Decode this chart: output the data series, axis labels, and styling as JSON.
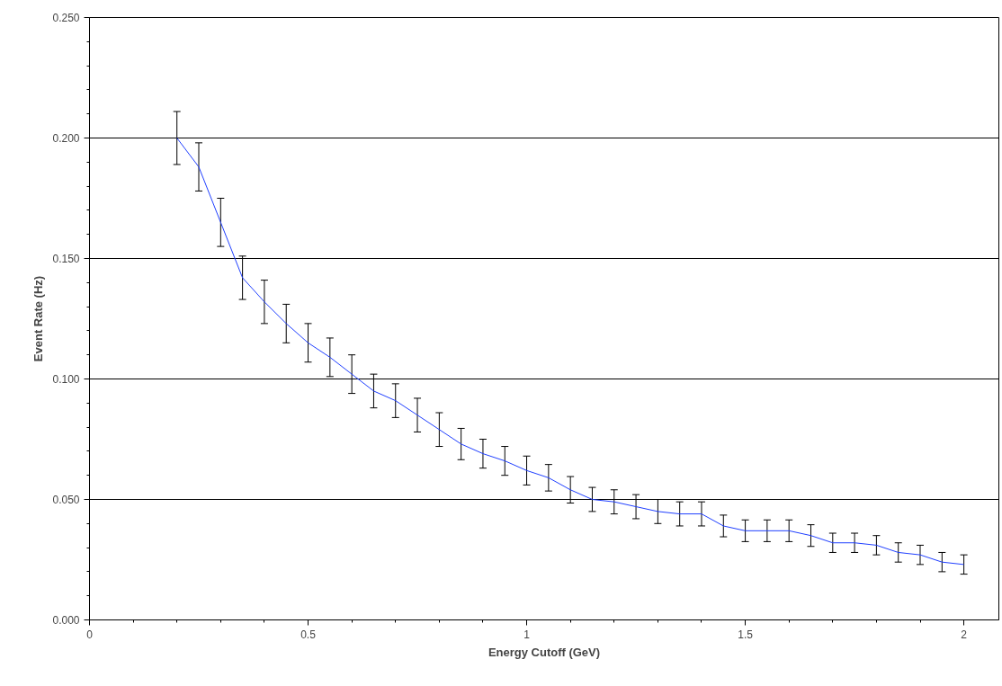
{
  "chart_data": {
    "type": "line",
    "xlabel": "Energy Cutoff (GeV)",
    "ylabel": "Event Rate (Hz)",
    "x": [
      0.2,
      0.25,
      0.3,
      0.35,
      0.4,
      0.45,
      0.5,
      0.55,
      0.6,
      0.65,
      0.7,
      0.75,
      0.8,
      0.85,
      0.9,
      0.95,
      1.0,
      1.05,
      1.1,
      1.15,
      1.2,
      1.25,
      1.3,
      1.35,
      1.4,
      1.45,
      1.5,
      1.55,
      1.6,
      1.65,
      1.7,
      1.75,
      1.8,
      1.85,
      1.9,
      1.95,
      2.0
    ],
    "series": [
      {
        "color": "#1f3fff",
        "values": [
          0.2,
          0.188,
          0.165,
          0.142,
          0.132,
          0.123,
          0.115,
          0.109,
          0.102,
          0.095,
          0.091,
          0.085,
          0.079,
          0.073,
          0.069,
          0.066,
          0.062,
          0.059,
          0.054,
          0.05,
          0.049,
          0.047,
          0.045,
          0.044,
          0.044,
          0.039,
          0.037,
          0.037,
          0.037,
          0.035,
          0.032,
          0.032,
          0.031,
          0.028,
          0.027,
          0.024,
          0.023
        ],
        "errors": [
          0.011,
          0.01,
          0.01,
          0.009,
          0.009,
          0.008,
          0.008,
          0.008,
          0.008,
          0.007,
          0.007,
          0.007,
          0.007,
          0.0065,
          0.006,
          0.006,
          0.006,
          0.0055,
          0.0055,
          0.005,
          0.005,
          0.005,
          0.005,
          0.005,
          0.005,
          0.0045,
          0.0045,
          0.0045,
          0.0045,
          0.0045,
          0.004,
          0.004,
          0.004,
          0.004,
          0.004,
          0.004,
          0.004
        ]
      }
    ],
    "xlim": [
      0,
      2.08
    ],
    "ylim": [
      0,
      0.25
    ],
    "xticks": [
      0,
      0.5,
      1,
      1.5,
      2
    ],
    "yticks": [
      {
        "value": 0,
        "label": "0.000"
      },
      {
        "value": 0.05,
        "label": "0.050"
      },
      {
        "value": 0.1,
        "label": "0.100"
      },
      {
        "value": 0.15,
        "label": "0.150"
      },
      {
        "value": 0.2,
        "label": "0.200"
      },
      {
        "value": 0.25,
        "label": "0.250"
      }
    ],
    "grid": "y",
    "marker": "none",
    "line_style": "solid"
  }
}
